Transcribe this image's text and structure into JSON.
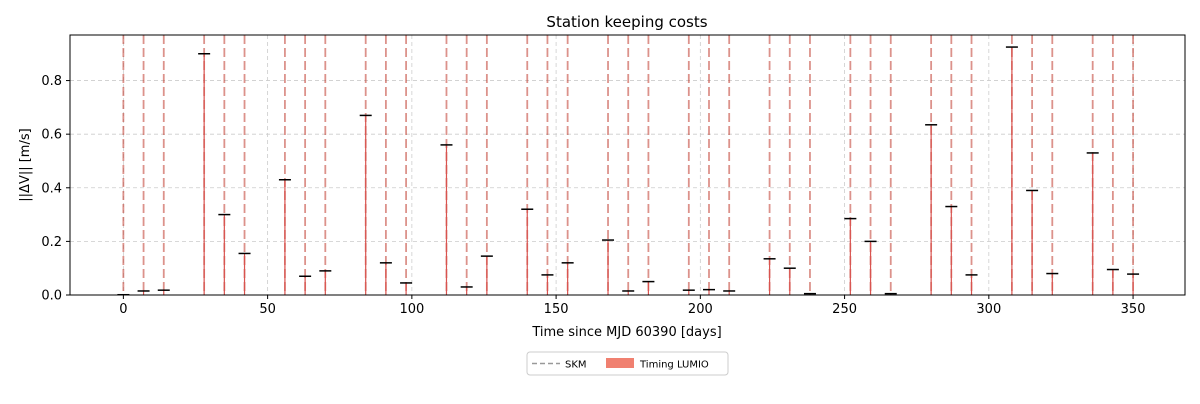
{
  "chart_data": {
    "type": "scatter",
    "title": "Station keeping costs",
    "xlabel": "Time since MJD 60390 [days]",
    "ylabel": "||ΔV|| [m/s]",
    "xlim": [
      -18.5,
      368
    ],
    "ylim": [
      0,
      0.97
    ],
    "xticks": [
      0,
      50,
      100,
      150,
      200,
      250,
      300,
      350
    ],
    "yticks": [
      0.0,
      0.2,
      0.4,
      0.6,
      0.8
    ],
    "ytick_labels": [
      "0.0",
      "0.2",
      "0.4",
      "0.6",
      "0.8"
    ],
    "grid": true,
    "legend": {
      "placement": "bottom-center",
      "entries": [
        {
          "label": "SKM",
          "style": "dashed-line",
          "color": "#999999"
        },
        {
          "label": "Timing LUMIO",
          "style": "patch",
          "color": "#f08070"
        }
      ]
    },
    "colors": {
      "timing": "#d9534f",
      "marker": "#000000",
      "grid": "#cccccc"
    },
    "series": [
      {
        "name": "SKM",
        "x": [
          0,
          7,
          14,
          28,
          35,
          42,
          56,
          63,
          70,
          84,
          91,
          98,
          112,
          119,
          126,
          140,
          147,
          154,
          168,
          175,
          182,
          196,
          203,
          210,
          224,
          231,
          238,
          252,
          259,
          266,
          280,
          287,
          294,
          308,
          315,
          322,
          336,
          343,
          350
        ],
        "y": [
          0.001,
          0.015,
          0.018,
          0.9,
          0.3,
          0.155,
          0.43,
          0.07,
          0.09,
          0.67,
          0.12,
          0.045,
          0.56,
          0.03,
          0.145,
          0.32,
          0.075,
          0.12,
          0.205,
          0.015,
          0.05,
          0.018,
          0.02,
          0.015,
          0.135,
          0.1,
          0.005,
          0.285,
          0.2,
          0.005,
          0.635,
          0.33,
          0.075,
          0.925,
          0.39,
          0.08,
          0.53,
          0.095,
          0.078
        ]
      }
    ]
  }
}
